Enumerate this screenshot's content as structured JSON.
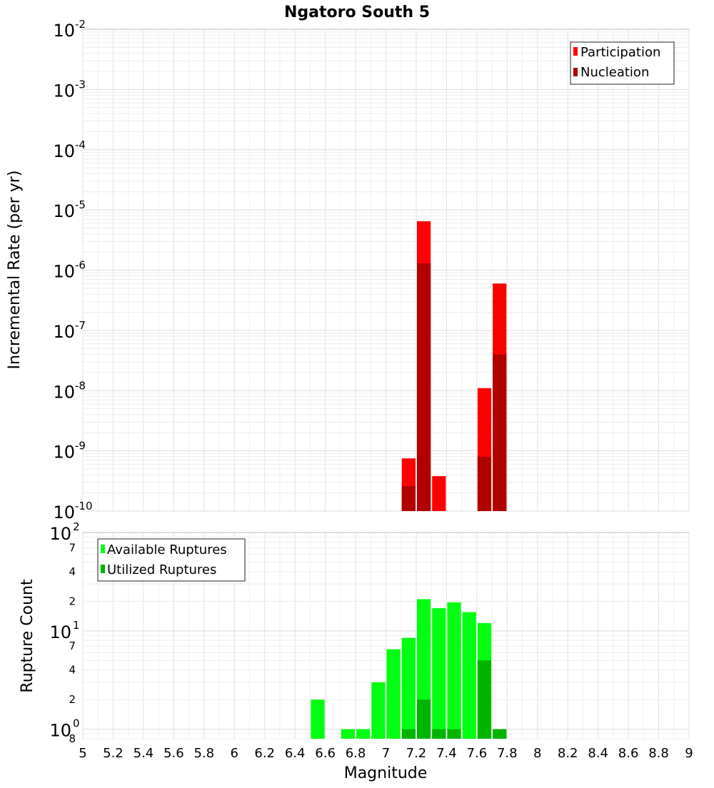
{
  "chart_data": [
    {
      "type": "bar",
      "title": "Ngatoro South 5",
      "xlabel": "Magnitude",
      "ylabel": "Incremental Rate (per yr)",
      "yscale": "log",
      "ylim": [
        1e-10,
        0.01
      ],
      "xlim": [
        5,
        9
      ],
      "bin_width": 0.1,
      "grid": true,
      "legend_position": "top-right",
      "y_tick_bases": [
        "10",
        "10",
        "10",
        "10",
        "10",
        "10",
        "10",
        "10",
        "10"
      ],
      "y_tick_exponents": [
        "-10",
        "-9",
        "-8",
        "-7",
        "-6",
        "-5",
        "-4",
        "-3",
        "-2"
      ],
      "series": [
        {
          "name": "Participation",
          "color": "#ff0000",
          "x": [
            7.15,
            7.25,
            7.35,
            7.65,
            7.75
          ],
          "values": [
            7.5e-10,
            6.5e-06,
            3.8e-10,
            1.1e-08,
            6e-07
          ]
        },
        {
          "name": "Nucleation",
          "color": "#b00000",
          "x": [
            7.15,
            7.25,
            7.65,
            7.75
          ],
          "values": [
            2.6e-10,
            1.3e-06,
            8e-10,
            4e-08
          ]
        }
      ]
    },
    {
      "type": "bar",
      "title": "",
      "xlabel": "Magnitude",
      "ylabel": "Rupture Count",
      "yscale": "log",
      "ylim": [
        0.8,
        100
      ],
      "xlim": [
        5,
        9
      ],
      "bin_width": 0.1,
      "grid": true,
      "legend_position": "top-left",
      "y_major_ticks": [
        {
          "base": "10",
          "exp": "0",
          "value": 1
        },
        {
          "base": "10",
          "exp": "1",
          "value": 10
        },
        {
          "base": "10",
          "exp": "2",
          "value": 100
        }
      ],
      "y_minor_ticks": [
        {
          "label": "8",
          "value": 0.8
        },
        {
          "label": "2",
          "value": 2
        },
        {
          "label": "4",
          "value": 4
        },
        {
          "label": "7",
          "value": 7
        },
        {
          "label": "2",
          "value": 20
        },
        {
          "label": "4",
          "value": 40
        },
        {
          "label": "7",
          "value": 70
        }
      ],
      "x_tick_labels": [
        "5",
        "5.2",
        "5.4",
        "5.6",
        "5.8",
        "6",
        "6.2",
        "6.4",
        "6.6",
        "6.8",
        "7",
        "7.2",
        "7.4",
        "7.6",
        "7.8",
        "8",
        "8.2",
        "8.4",
        "8.6",
        "8.8",
        "9"
      ],
      "series": [
        {
          "name": "Available Ruptures",
          "color": "#00ff10",
          "x": [
            6.55,
            6.75,
            6.85,
            6.95,
            7.05,
            7.15,
            7.25,
            7.35,
            7.45,
            7.55,
            7.65,
            7.75
          ],
          "values": [
            2,
            1,
            1,
            3,
            6.5,
            8.5,
            21,
            17,
            19.5,
            15.5,
            12,
            1
          ]
        },
        {
          "name": "Utilized Ruptures",
          "color": "#00b400",
          "x": [
            7.15,
            7.25,
            7.35,
            7.45,
            7.65,
            7.75
          ],
          "values": [
            1,
            2,
            1,
            1,
            5,
            1
          ]
        }
      ]
    }
  ]
}
